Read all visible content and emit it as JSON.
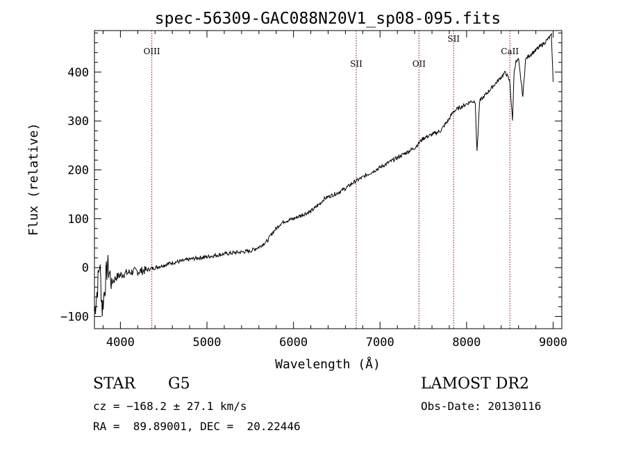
{
  "chart_data": {
    "type": "line",
    "title": "spec-56309-GAC088N20V1_sp08-095.fits",
    "xlabel": "Wavelength (Å)",
    "ylabel": "Flux (relative)",
    "xlim": [
      3700,
      9100
    ],
    "ylim": [
      -125,
      485
    ],
    "xticks": [
      4000,
      5000,
      6000,
      7000,
      8000,
      9000
    ],
    "yticks": [
      -100,
      0,
      100,
      200,
      300,
      400
    ],
    "grid": false,
    "line_color": "#000000",
    "marker_color": "#8b0000",
    "series": [
      {
        "x": [
          3700,
          3730,
          3760,
          3790,
          3820,
          3850,
          3900,
          3950,
          4000,
          4050,
          4100,
          4150,
          4200,
          4300,
          4400,
          4500,
          4600,
          4700,
          4800,
          4900,
          5000,
          5100,
          5200,
          5300,
          5400,
          5500,
          5600,
          5700,
          5750,
          5800,
          5850,
          5900,
          6000,
          6100,
          6200,
          6300,
          6350,
          6400,
          6500,
          6600,
          6700,
          6800,
          6900,
          7000,
          7100,
          7200,
          7300,
          7400,
          7450,
          7500,
          7600,
          7700,
          7800,
          7850,
          7900,
          8000,
          8050,
          8100,
          8120,
          8150,
          8200,
          8300,
          8400,
          8450,
          8500,
          8530,
          8550,
          8570,
          8600,
          8650,
          8680,
          8700,
          8800,
          8900,
          8950,
          8980,
          9000
        ],
        "y": [
          -90,
          -50,
          10,
          -85,
          -40,
          5,
          -30,
          -20,
          -15,
          -12,
          -10,
          -8,
          -8,
          -5,
          0,
          5,
          10,
          13,
          17,
          20,
          22,
          25,
          28,
          30,
          32,
          34,
          42,
          55,
          70,
          80,
          90,
          95,
          100,
          108,
          115,
          130,
          140,
          145,
          152,
          162,
          175,
          185,
          195,
          205,
          215,
          225,
          235,
          245,
          255,
          265,
          272,
          280,
          305,
          320,
          325,
          335,
          340,
          340,
          235,
          340,
          350,
          370,
          390,
          400,
          380,
          300,
          405,
          420,
          425,
          350,
          425,
          430,
          445,
          460,
          470,
          475,
          380
        ]
      }
    ],
    "lines": [
      {
        "label": "OIII",
        "x": 4363
      },
      {
        "label": "SII",
        "x": 6725
      },
      {
        "label": "OII",
        "x": 7450
      },
      {
        "label": "SII",
        "x": 7850
      },
      {
        "label": "CaII",
        "x": 8500
      }
    ]
  },
  "info": {
    "object_class": "STAR",
    "subclass": "G5",
    "survey": "LAMOST DR2",
    "cz": "cz = −168.2 ± 27.1 km/s",
    "obs_date": "Obs-Date: 20130116",
    "coords": "RA =  89.89001, DEC =  20.22446"
  }
}
